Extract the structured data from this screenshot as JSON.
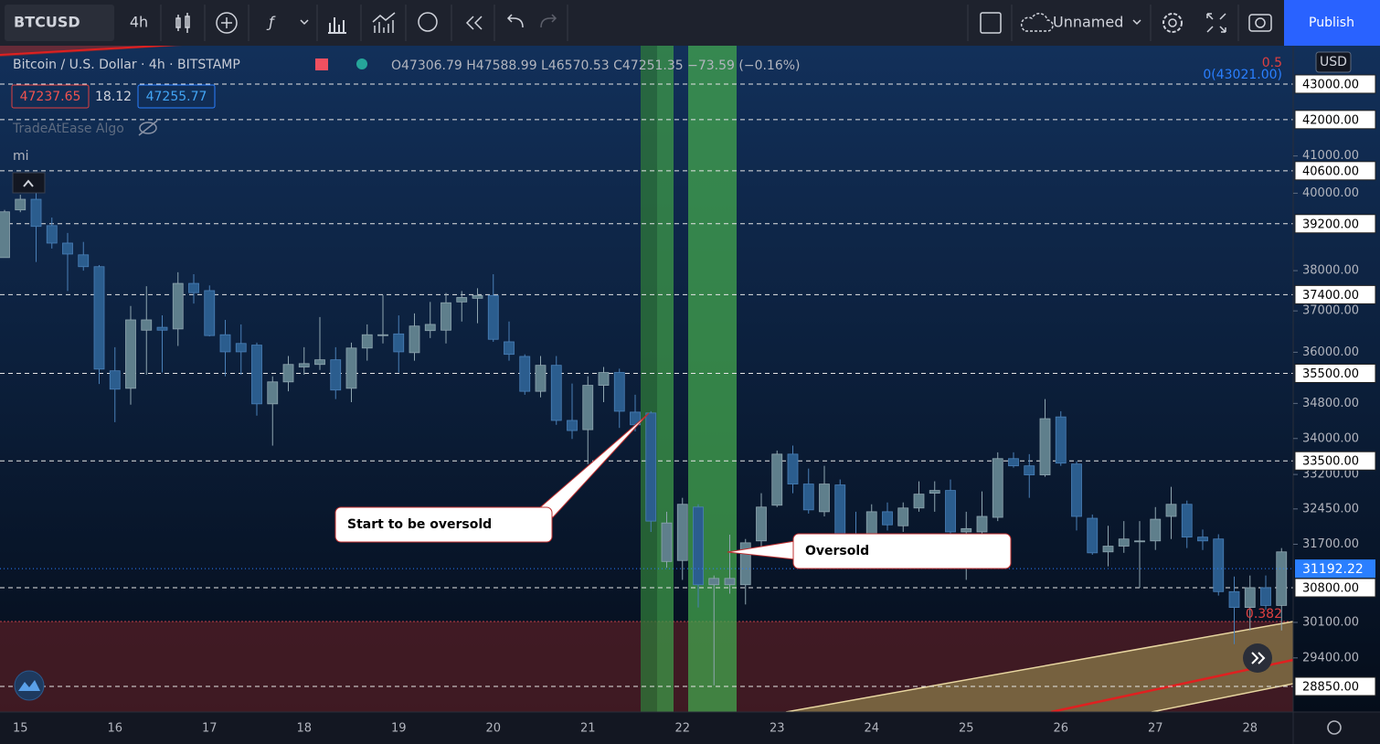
{
  "toolbar": {
    "symbol": "BTCUSD",
    "interval": "4h",
    "layout_name": "Unnamed",
    "publish": "Publish"
  },
  "legend": {
    "symbol": "Bitcoin / U.S. Dollar · 4h · BITSTAMP",
    "ohlc": "O47306.79 H47588.99 L46570.53 C47251.35 −73.59 (−0.16%)",
    "bid": "47237.65",
    "spread": "18.12",
    "ask": "47255.77",
    "indicator": "TradeAtEase Algo",
    "indicator2": "mi"
  },
  "currency": "USD",
  "annotations": [
    "Start to be oversold",
    "Oversold"
  ],
  "fib_labels": [
    "0.5",
    "0(43021.00)",
    "0.382"
  ],
  "chart_data": {
    "type": "candlestick",
    "log_scale": true,
    "up_color": "#5f7f8c",
    "down_color": "#2b5d8e",
    "categories": [
      null,
      "15",
      null,
      null,
      null,
      null,
      null,
      "16",
      null,
      null,
      null,
      null,
      null,
      "17",
      null,
      null,
      null,
      null,
      null,
      "18",
      null,
      null,
      null,
      null,
      null,
      "19",
      null,
      null,
      null,
      null,
      null,
      "20",
      null,
      null,
      null,
      null,
      null,
      "21",
      null,
      null,
      null,
      null,
      null,
      "22",
      null,
      null,
      null,
      null,
      null,
      "23",
      null,
      null,
      null,
      null,
      null,
      "24",
      null,
      null,
      null,
      null,
      null,
      "25",
      null,
      null,
      null,
      null,
      null,
      "26",
      null,
      null,
      null,
      null,
      null,
      "27",
      null,
      null,
      null,
      null,
      null,
      "28",
      null,
      null
    ],
    "open": [
      38330,
      39560,
      39840,
      39150,
      38700,
      38400,
      38100,
      35560,
      35150,
      36530,
      36600,
      36560,
      37680,
      37500,
      36420,
      36210,
      36170,
      34790,
      35300,
      35650,
      35710,
      35820,
      35150,
      36100,
      36400,
      36440,
      35990,
      36520,
      36530,
      37220,
      37310,
      37380,
      36250,
      35900,
      35080,
      35690,
      34410,
      34200,
      35220,
      35520,
      34600,
      34580,
      31340,
      31360,
      32490,
      30860,
      30860,
      30860,
      31770,
      32530,
      33650,
      32990,
      32390,
      32970,
      31910,
      31810,
      32390,
      32090,
      32470,
      32790,
      32850,
      31960,
      31960,
      32270,
      33550,
      33390,
      33190,
      34490,
      33430,
      32250,
      31540,
      31660,
      31770,
      31770,
      32290,
      32550,
      31850,
      31810,
      30720,
      30400,
      30800,
      30440
    ],
    "high": [
      39560,
      39960,
      40000,
      39360,
      38960,
      38730,
      38140,
      36120,
      37120,
      37610,
      36890,
      37960,
      37910,
      37630,
      36780,
      36670,
      36230,
      35430,
      35910,
      36120,
      36850,
      36120,
      36230,
      36670,
      37390,
      36890,
      36940,
      37220,
      37440,
      37490,
      37560,
      37910,
      36740,
      35950,
      35910,
      35910,
      35260,
      35430,
      35650,
      35610,
      35000,
      34620,
      32390,
      32690,
      32550,
      31050,
      31900,
      31810,
      32790,
      33730,
      33840,
      33330,
      33390,
      33090,
      32390,
      32550,
      32590,
      32590,
      33050,
      33050,
      33090,
      32390,
      32830,
      33690,
      33690,
      33650,
      34900,
      34620,
      33490,
      32330,
      32090,
      32190,
      32190,
      32490,
      32930,
      32630,
      32010,
      31910,
      31030,
      31050,
      31050,
      31620
    ],
    "low": [
      38330,
      39500,
      38220,
      38560,
      37490,
      38000,
      35250,
      34370,
      34770,
      35470,
      35520,
      36150,
      37180,
      36380,
      35430,
      35470,
      34520,
      33840,
      35080,
      35470,
      35580,
      34900,
      34830,
      35800,
      36210,
      35520,
      35800,
      36340,
      36210,
      36740,
      36700,
      36250,
      35800,
      35000,
      34940,
      34310,
      33990,
      33430,
      34830,
      34240,
      34160,
      31960,
      31210,
      30960,
      30400,
      28870,
      30680,
      30460,
      31620,
      32490,
      32790,
      32350,
      32290,
      31810,
      31660,
      31660,
      31990,
      31960,
      32390,
      32390,
      31660,
      30960,
      31810,
      32190,
      33350,
      32690,
      33150,
      33390,
      31990,
      31480,
      31240,
      31520,
      30800,
      31580,
      31810,
      31620,
      31580,
      30640,
      29670,
      29940,
      30350,
      29940
    ],
    "close": [
      39510,
      39840,
      39130,
      38700,
      38420,
      38100,
      35600,
      35130,
      36780,
      36780,
      36530,
      37680,
      37450,
      36400,
      36010,
      36010,
      34790,
      35300,
      35710,
      35730,
      35820,
      35110,
      36100,
      36420,
      36420,
      36010,
      36630,
      36670,
      37200,
      37330,
      37380,
      36310,
      35950,
      35080,
      35690,
      34410,
      34180,
      35220,
      35520,
      34620,
      34310,
      32190,
      32150,
      32550,
      30860,
      30990,
      30990,
      31730,
      32490,
      33650,
      32990,
      32430,
      32990,
      31910,
      31770,
      32390,
      32110,
      32470,
      32770,
      32850,
      31960,
      32030,
      32290,
      33550,
      33390,
      33190,
      34450,
      33450,
      32290,
      31520,
      31660,
      31810,
      31770,
      32230,
      32550,
      31850,
      31770,
      30720,
      30400,
      30800,
      30440,
      31540
    ],
    "ylim": [
      28365,
      44107
    ],
    "yticks": [
      {
        "value": 41000,
        "label": "41000.00"
      },
      {
        "value": 40000,
        "label": "40000.00"
      },
      {
        "value": 38000,
        "label": "38000.00"
      },
      {
        "value": 37000,
        "label": "37000.00"
      },
      {
        "value": 36000,
        "label": "36000.00"
      },
      {
        "value": 34800,
        "label": "34800.00"
      },
      {
        "value": 34000,
        "label": "34000.00"
      },
      {
        "value": 33200,
        "label": "33200.00"
      },
      {
        "value": 32450,
        "label": "32450.00"
      },
      {
        "value": 31700,
        "label": "31700.00"
      },
      {
        "value": 30100,
        "label": "30100.00"
      },
      {
        "value": 29400,
        "label": "29400.00"
      }
    ],
    "levels": [
      {
        "value": 43000,
        "label": "43000.00"
      },
      {
        "value": 42000,
        "label": "42000.00"
      },
      {
        "value": 40600,
        "label": "40600.00"
      },
      {
        "value": 39200,
        "label": "39200.00"
      },
      {
        "value": 37400,
        "label": "37400.00"
      },
      {
        "value": 35500,
        "label": "35500.00"
      },
      {
        "value": 33500,
        "label": "33500.00"
      },
      {
        "value": 30800,
        "label": "30800.00"
      },
      {
        "value": 28850,
        "label": "28850.00"
      }
    ],
    "last_price": 31192.22
  }
}
